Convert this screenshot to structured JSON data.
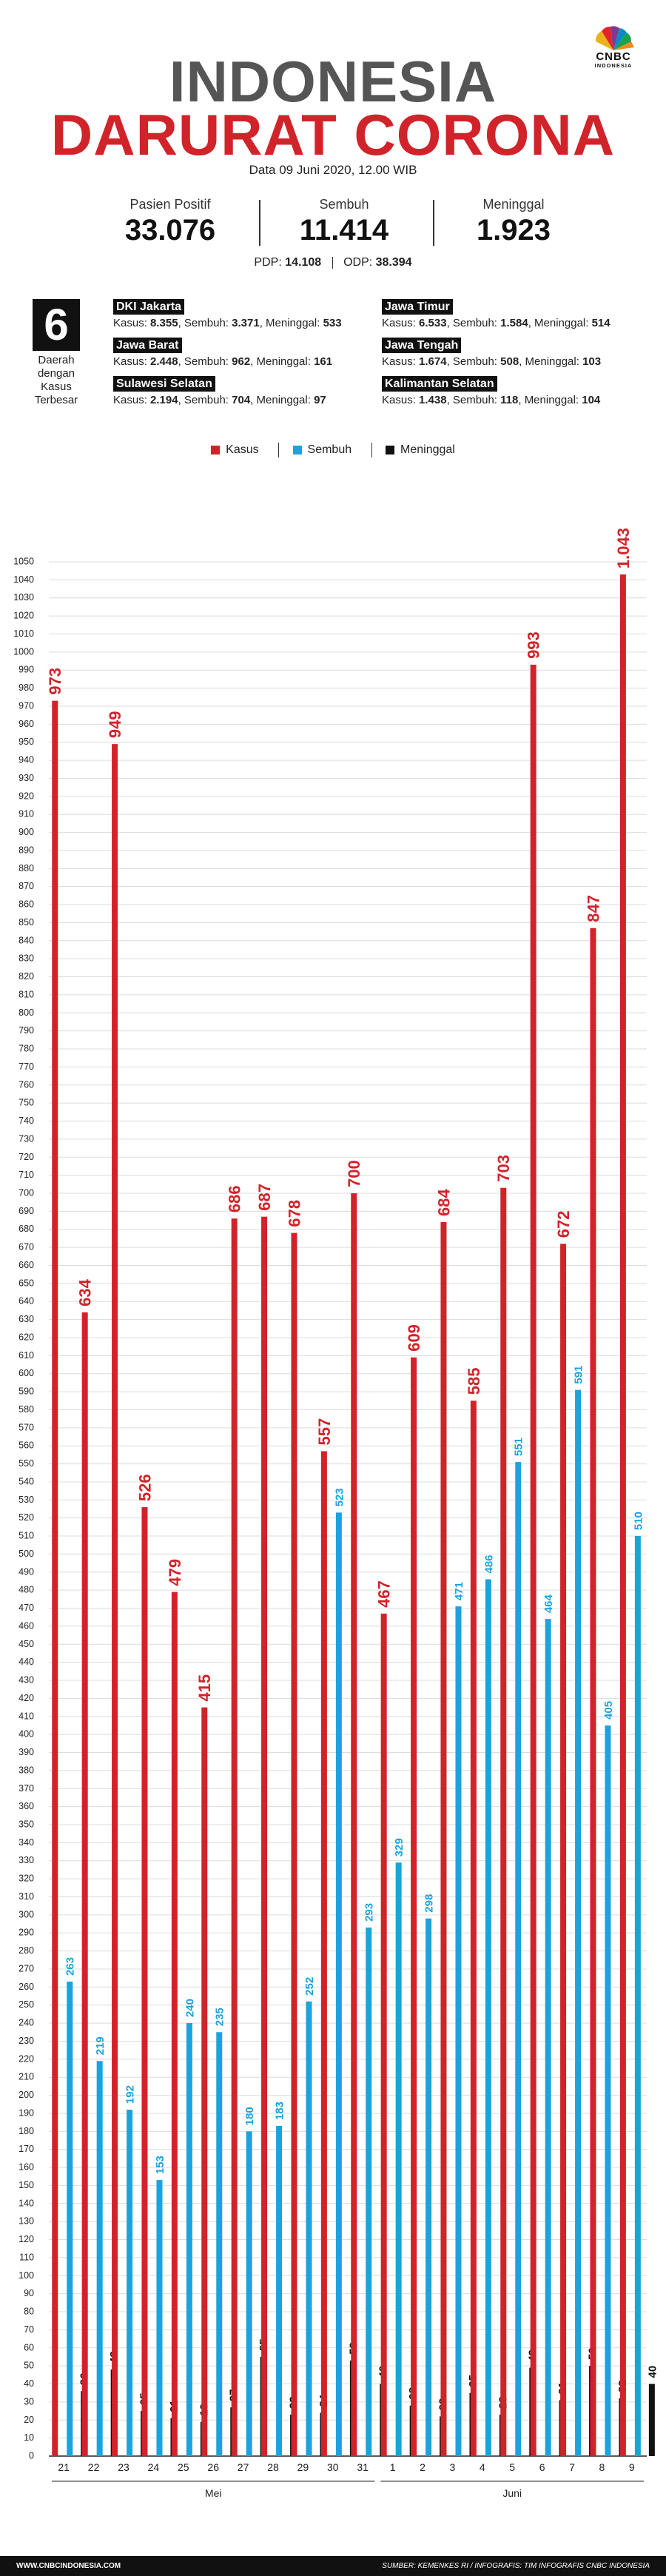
{
  "brand": {
    "name": "CNBC",
    "sub": "INDONESIA"
  },
  "title_line1": "INDONESIA",
  "title_line2": "DARURAT CORONA",
  "date_text": "Data 09 Juni 2020, 12.00 WIB",
  "stats": [
    {
      "label": "Pasien Positif",
      "value": "33.076"
    },
    {
      "label": "Sembuh",
      "value": "11.414"
    },
    {
      "label": "Meninggal",
      "value": "1.923"
    }
  ],
  "pdp": {
    "label": "PDP:",
    "value": "14.108"
  },
  "odp": {
    "label": "ODP:",
    "value": "38.394"
  },
  "regions_count": "6",
  "regions_label": "Daerah dengan Kasus Terbesar",
  "regions": [
    {
      "name": "DKI Jakarta",
      "kasus_label": "Kasus:",
      "kasus": "8.355",
      "sembuh_label": "Sembuh:",
      "sembuh": "3.371",
      "meninggal_label": "Meninggal:",
      "meninggal": "533"
    },
    {
      "name": "Jawa Timur",
      "kasus_label": "Kasus:",
      "kasus": "6.533",
      "sembuh_label": "Sembuh:",
      "sembuh": "1.584",
      "meninggal_label": "Meninggal:",
      "meninggal": "514"
    },
    {
      "name": "Jawa Barat",
      "kasus_label": "Kasus:",
      "kasus": "2.448",
      "sembuh_label": "Sembuh:",
      "sembuh": "962",
      "meninggal_label": "Meninggal:",
      "meninggal": "161"
    },
    {
      "name": "Jawa Tengah",
      "kasus_label": "Kasus:",
      "kasus": "1.674",
      "sembuh_label": "Sembuh:",
      "sembuh": "508",
      "meninggal_label": "Meninggal:",
      "meninggal": "103"
    },
    {
      "name": "Sulawesi Selatan",
      "kasus_label": "Kasus:",
      "kasus": "2.194",
      "sembuh_label": "Sembuh:",
      "sembuh": "704",
      "meninggal_label": "Meninggal:",
      "meninggal": "97"
    },
    {
      "name": "Kalimantan Selatan",
      "kasus_label": "Kasus:",
      "kasus": "1.438",
      "sembuh_label": "Sembuh:",
      "sembuh": "118",
      "meninggal_label": "Meninggal:",
      "meninggal": "104"
    }
  ],
  "legend": [
    {
      "name": "Kasus",
      "color": "#d1232a"
    },
    {
      "name": "Sembuh",
      "color": "#1ba3dd"
    },
    {
      "name": "Meninggal",
      "color": "#111111"
    }
  ],
  "chart_data": {
    "type": "bar",
    "categories": [
      "21",
      "22",
      "23",
      "24",
      "25",
      "26",
      "27",
      "28",
      "29",
      "30",
      "31",
      "1",
      "2",
      "3",
      "4",
      "5",
      "6",
      "7",
      "8",
      "9"
    ],
    "category_labels": [
      "21",
      "22",
      "23",
      "24",
      "25",
      "26",
      "27",
      "28",
      "29",
      "30",
      "31",
      "1",
      "2",
      "3",
      "4",
      "5",
      "6",
      "7",
      "8",
      "9"
    ],
    "groups": [
      {
        "label": "Mei",
        "from": 0,
        "to": 10
      },
      {
        "label": "Juni",
        "from": 11,
        "to": 19
      }
    ],
    "series": [
      {
        "name": "Kasus",
        "color": "#d1232a",
        "values": [
          973,
          634,
          949,
          526,
          479,
          415,
          686,
          687,
          678,
          557,
          700,
          467,
          609,
          684,
          585,
          703,
          993,
          672,
          847,
          1043
        ],
        "labels": [
          "973",
          "634",
          "949",
          "526",
          "479",
          "415",
          "686",
          "687",
          "678",
          "557",
          "700",
          "467",
          "609",
          "684",
          "585",
          "703",
          "993",
          "672",
          "847",
          "1.043"
        ]
      },
      {
        "name": "Sembuh",
        "color": "#1ba3dd",
        "values": [
          263,
          219,
          192,
          153,
          240,
          235,
          180,
          183,
          252,
          523,
          293,
          329,
          298,
          471,
          486,
          551,
          464,
          591,
          405,
          510
        ],
        "labels": [
          "263",
          "219",
          "192",
          "153",
          "240",
          "235",
          "180",
          "183",
          "252",
          "523",
          "293",
          "329",
          "298",
          "471",
          "486",
          "551",
          "464",
          "591",
          "405",
          "510"
        ]
      },
      {
        "name": "Meninggal",
        "color": "#111111",
        "values": [
          36,
          48,
          25,
          21,
          19,
          27,
          55,
          23,
          24,
          53,
          40,
          28,
          22,
          35,
          23,
          49,
          31,
          50,
          32,
          40
        ],
        "labels": [
          "36",
          "48",
          "25",
          "21",
          "19",
          "27",
          "55",
          "23",
          "24",
          "53",
          "40",
          "28",
          "22",
          "35",
          "23",
          "49",
          "31",
          "50",
          "32",
          "40"
        ]
      }
    ],
    "ylim": [
      0,
      1050
    ],
    "ytick_step": 10,
    "grid": true,
    "legend_position": "top-center"
  },
  "footer": {
    "left": "WWW.CNBCINDONESIA.COM",
    "right": "SUMBER: KEMENKES RI / INFOGRAFIS: TIM INFOGRAFIS CNBC INDONESIA"
  }
}
